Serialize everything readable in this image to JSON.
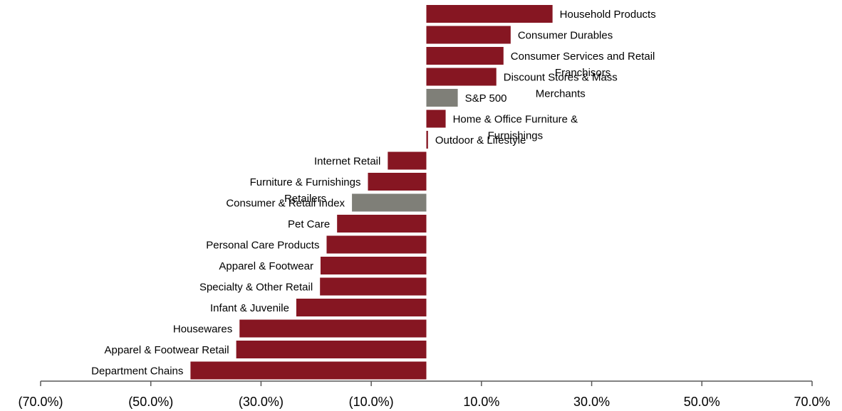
{
  "chart_data": {
    "type": "bar",
    "orientation": "horizontal",
    "title": "",
    "xlabel": "",
    "ylabel": "",
    "xlim": [
      -70,
      70
    ],
    "x_ticks": [
      -70,
      -50,
      -30,
      -10,
      10,
      30,
      50,
      70
    ],
    "x_tick_labels": [
      "(70.0%)",
      "(50.0%)",
      "(30.0%)",
      "(10.0%)",
      "10.0%",
      "30.0%",
      "50.0%",
      "70.0%"
    ],
    "grid": false,
    "legend": "none",
    "colors": {
      "sector": "#861622",
      "index": "#7f7f78",
      "axis": "#595959"
    },
    "bars": [
      {
        "label_lines": [
          "Household Products"
        ],
        "value": 22.9,
        "kind": "sector"
      },
      {
        "label_lines": [
          "Consumer Durables"
        ],
        "value": 15.3,
        "kind": "sector"
      },
      {
        "label_lines": [
          "Consumer Services and Retail",
          "Franchisors"
        ],
        "value": 14.0,
        "kind": "sector"
      },
      {
        "label_lines": [
          "Discount Stores & Mass",
          "Merchants"
        ],
        "value": 12.7,
        "kind": "sector"
      },
      {
        "label_lines": [
          "S&P 500"
        ],
        "value": 5.7,
        "kind": "index"
      },
      {
        "label_lines": [
          "Home & Office Furniture &",
          "Furnishings"
        ],
        "value": 3.5,
        "kind": "sector"
      },
      {
        "label_lines": [
          "Outdoor & Lifestyle"
        ],
        "value": 0.3,
        "kind": "sector"
      },
      {
        "label_lines": [
          "Internet Retail"
        ],
        "value": -7.0,
        "kind": "sector"
      },
      {
        "label_lines": [
          "Furniture & Furnishings",
          "Retailers"
        ],
        "value": -10.6,
        "kind": "sector"
      },
      {
        "label_lines": [
          "Consumer & Retail Index"
        ],
        "value": -13.5,
        "kind": "index"
      },
      {
        "label_lines": [
          "Pet Care"
        ],
        "value": -16.2,
        "kind": "sector"
      },
      {
        "label_lines": [
          "Personal Care Products"
        ],
        "value": -18.1,
        "kind": "sector"
      },
      {
        "label_lines": [
          "Apparel & Footwear"
        ],
        "value": -19.2,
        "kind": "sector"
      },
      {
        "label_lines": [
          "Specialty & Other Retail"
        ],
        "value": -19.3,
        "kind": "sector"
      },
      {
        "label_lines": [
          "Infant & Juvenile"
        ],
        "value": -23.6,
        "kind": "sector"
      },
      {
        "label_lines": [
          "Housewares"
        ],
        "value": -33.9,
        "kind": "sector"
      },
      {
        "label_lines": [
          "Apparel & Footwear Retail"
        ],
        "value": -34.5,
        "kind": "sector"
      },
      {
        "label_lines": [
          "Department Chains"
        ],
        "value": -42.8,
        "kind": "sector"
      }
    ]
  }
}
